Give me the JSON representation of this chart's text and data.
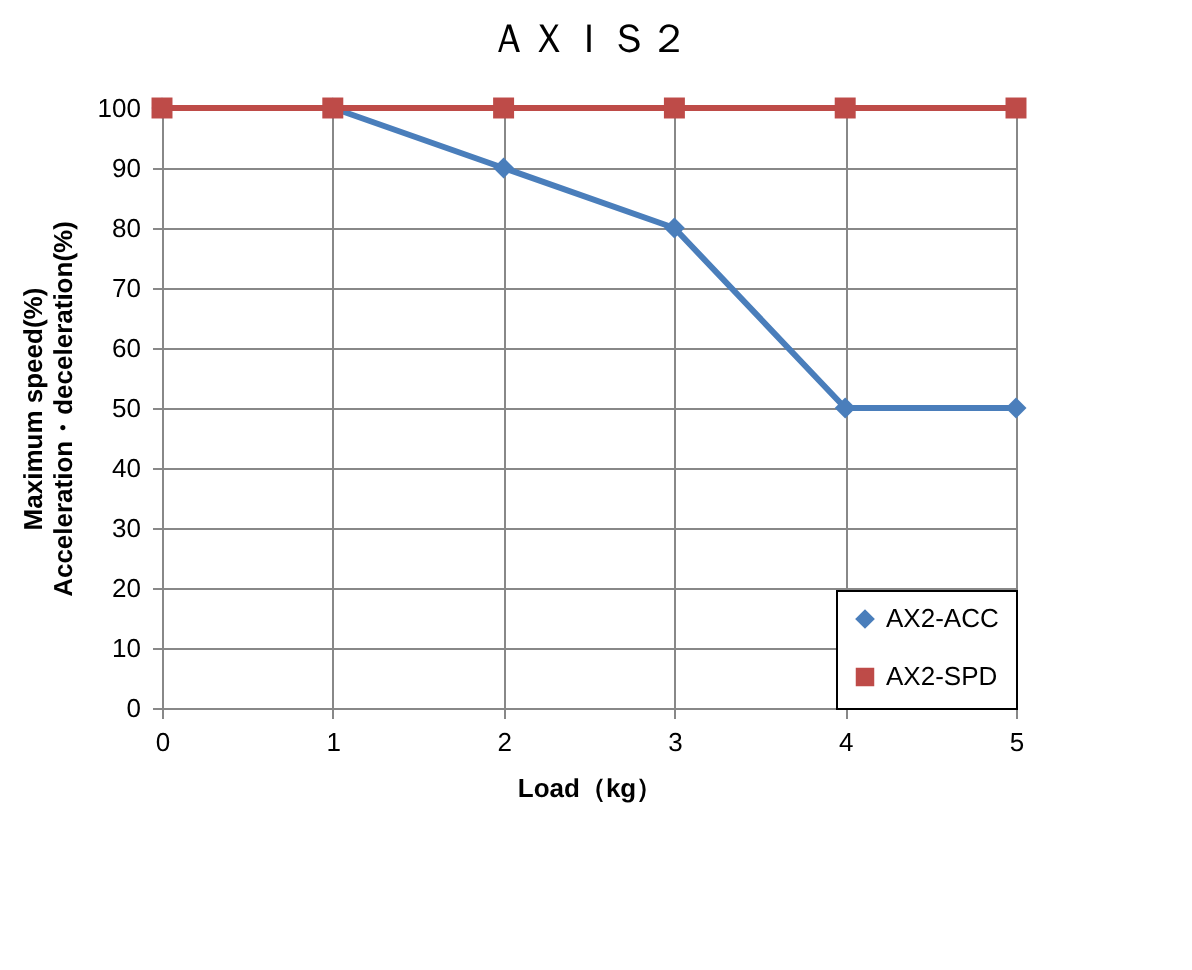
{
  "chart_data": {
    "type": "line",
    "title": "ＡＸＩＳ２",
    "xlabel": "Load（kg）",
    "ylabel": "Maximum speed(%)\nAcceleration・deceleration(%)",
    "x": [
      0,
      1,
      2,
      3,
      4,
      5
    ],
    "series": [
      {
        "name": "AX2-ACC",
        "color": "#4a7ebb",
        "marker": "diamond",
        "values": [
          100,
          100,
          90,
          80,
          50,
          50
        ]
      },
      {
        "name": "AX2-SPD",
        "color": "#be4b48",
        "marker": "square",
        "values": [
          100,
          100,
          100,
          100,
          100,
          100
        ]
      }
    ],
    "xlim": [
      0,
      5
    ],
    "xticks": [
      0,
      1,
      2,
      3,
      4,
      5
    ],
    "ylim": [
      0,
      100
    ],
    "yticks": [
      0,
      10,
      20,
      30,
      40,
      50,
      60,
      70,
      80,
      90,
      100
    ],
    "grid": true,
    "legend": "bottom right",
    "line_style": "solid"
  }
}
